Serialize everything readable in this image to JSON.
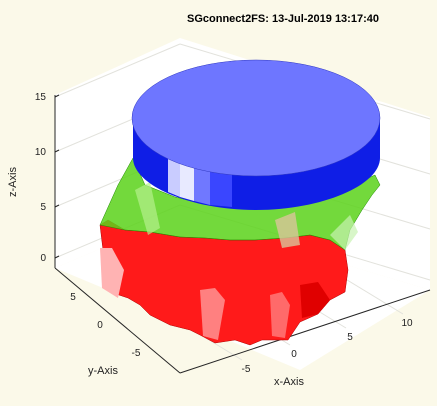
{
  "figure": {
    "background": "#fbf9e9",
    "plot_background": "#ffffff"
  },
  "chart_data": {
    "type": "surface-3d",
    "title": "SGconnect2FS: 13-Jul-2019 13:17:40",
    "xlabel": "x-Axis",
    "ylabel": "y-Axis",
    "zlabel": "z-Axis",
    "x_ticks": [
      "-5",
      "0",
      "5",
      "10"
    ],
    "y_ticks": [
      "5",
      "0",
      "-5"
    ],
    "z_ticks": [
      "0",
      "5",
      "10",
      "15"
    ],
    "grid": true,
    "objects": [
      {
        "name": "cylinder",
        "color": "#1f2cff",
        "top_color": "#6e76ff",
        "z_range": [
          10,
          15
        ]
      },
      {
        "name": "connector",
        "color": "#22d600",
        "z_range": [
          2,
          10
        ]
      },
      {
        "name": "gear",
        "color": "#ff1a1a",
        "z_range": [
          0,
          2
        ]
      }
    ]
  }
}
